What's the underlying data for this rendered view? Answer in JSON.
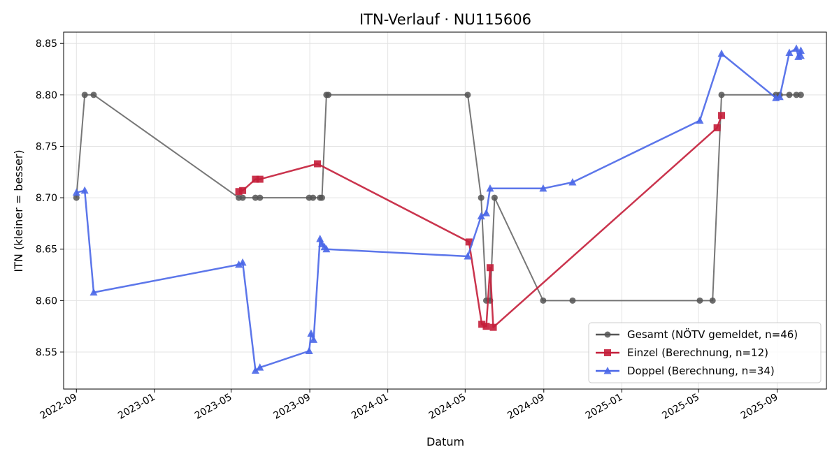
{
  "chart_data": {
    "type": "line",
    "title": "ITN-Verlauf · NU115606",
    "xlabel": "Datum",
    "ylabel": "ITN  (kleiner = besser)",
    "xlim": [
      "2022-08-12",
      "2025-11-17"
    ],
    "ylim": [
      8.514,
      8.861
    ],
    "x_ticks": [
      "2022-09-01",
      "2023-01-01",
      "2023-05-01",
      "2023-09-01",
      "2024-01-01",
      "2024-05-01",
      "2024-09-01",
      "2025-01-01",
      "2025-05-01",
      "2025-09-01"
    ],
    "x_tick_labels": [
      "2022-09",
      "2023-01",
      "2023-05",
      "2023-09",
      "2024-01",
      "2024-05",
      "2024-09",
      "2025-01",
      "2025-05",
      "2025-09"
    ],
    "y_ticks": [
      8.55,
      8.6,
      8.65,
      8.7,
      8.75,
      8.8,
      8.85
    ],
    "y_tick_labels": [
      "8.55",
      "8.60",
      "8.65",
      "8.70",
      "8.75",
      "8.80",
      "8.85"
    ],
    "grid": true,
    "legend_position": "bottom-right",
    "series": [
      {
        "name": "Gesamt (NÖTV gemeldet, n=46)",
        "color": "#555555",
        "marker": "circle",
        "points": [
          [
            "2022-09-01",
            8.7
          ],
          [
            "2022-09-14",
            8.8
          ],
          [
            "2022-09-28",
            8.8
          ],
          [
            "2023-05-13",
            8.7
          ],
          [
            "2023-05-19",
            8.7
          ],
          [
            "2023-06-08",
            8.7
          ],
          [
            "2023-06-15",
            8.7
          ],
          [
            "2023-08-31",
            8.7
          ],
          [
            "2023-09-06",
            8.7
          ],
          [
            "2023-09-17",
            8.7
          ],
          [
            "2023-09-20",
            8.7
          ],
          [
            "2023-09-27",
            8.8
          ],
          [
            "2023-09-30",
            8.8
          ],
          [
            "2024-05-05",
            8.8
          ],
          [
            "2024-05-26",
            8.7
          ],
          [
            "2024-06-03",
            8.6
          ],
          [
            "2024-06-09",
            8.6
          ],
          [
            "2024-06-16",
            8.7
          ],
          [
            "2024-08-31",
            8.6
          ],
          [
            "2024-10-16",
            8.6
          ],
          [
            "2025-05-03",
            8.6
          ],
          [
            "2025-05-23",
            8.6
          ],
          [
            "2025-06-06",
            8.8
          ],
          [
            "2025-08-30",
            8.8
          ],
          [
            "2025-09-05",
            8.8
          ],
          [
            "2025-09-20",
            8.8
          ],
          [
            "2025-10-01",
            8.8
          ],
          [
            "2025-10-08",
            8.8
          ]
        ]
      },
      {
        "name": "Einzel (Berechnung, n=12)",
        "color": "#c41e3a",
        "marker": "square",
        "points": [
          [
            "2023-05-13",
            8.706
          ],
          [
            "2023-05-19",
            8.707
          ],
          [
            "2023-06-08",
            8.718
          ],
          [
            "2023-06-15",
            8.718
          ],
          [
            "2023-09-13",
            8.733
          ],
          [
            "2024-05-07",
            8.657
          ],
          [
            "2024-05-27",
            8.577
          ],
          [
            "2024-06-03",
            8.575
          ],
          [
            "2024-06-09",
            8.632
          ],
          [
            "2024-06-14",
            8.574
          ],
          [
            "2025-05-30",
            8.768
          ],
          [
            "2025-06-06",
            8.78
          ]
        ]
      },
      {
        "name": "Doppel (Berechnung, n=34)",
        "color": "#4a67e8",
        "marker": "triangle",
        "points": [
          [
            "2022-09-01",
            8.705
          ],
          [
            "2022-09-14",
            8.707
          ],
          [
            "2022-09-28",
            8.608
          ],
          [
            "2023-05-13",
            8.635
          ],
          [
            "2023-05-19",
            8.637
          ],
          [
            "2023-06-08",
            8.532
          ],
          [
            "2023-06-15",
            8.535
          ],
          [
            "2023-08-31",
            8.551
          ],
          [
            "2023-09-03",
            8.568
          ],
          [
            "2023-09-07",
            8.562
          ],
          [
            "2023-09-17",
            8.66
          ],
          [
            "2023-09-20",
            8.655
          ],
          [
            "2023-09-24",
            8.652
          ],
          [
            "2023-09-27",
            8.65
          ],
          [
            "2024-05-05",
            8.643
          ],
          [
            "2024-05-26",
            8.682
          ],
          [
            "2024-06-03",
            8.685
          ],
          [
            "2024-06-09",
            8.709
          ],
          [
            "2024-08-31",
            8.709
          ],
          [
            "2024-10-16",
            8.715
          ],
          [
            "2025-05-03",
            8.775
          ],
          [
            "2025-06-06",
            8.84
          ],
          [
            "2025-08-30",
            8.797
          ],
          [
            "2025-09-05",
            8.798
          ],
          [
            "2025-09-20",
            8.841
          ],
          [
            "2025-10-01",
            8.845
          ],
          [
            "2025-10-04",
            8.837
          ],
          [
            "2025-10-08",
            8.843
          ],
          [
            "2025-10-08",
            8.838
          ]
        ]
      }
    ]
  }
}
